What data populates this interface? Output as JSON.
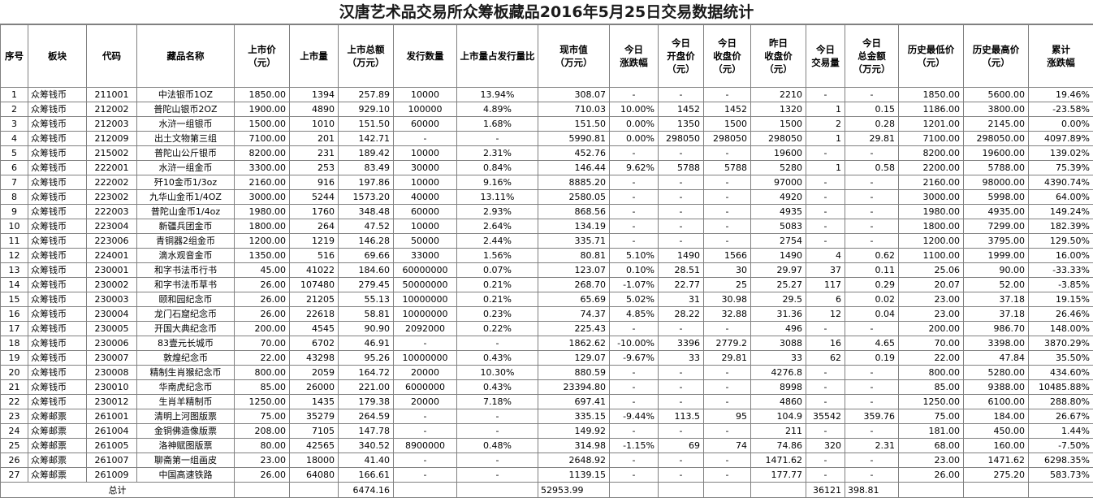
{
  "title": "汉唐艺术品交易所众筹板藏品2016年5月25日交易数据统计",
  "headers": [
    "序号",
    "板块",
    "代码",
    "藏品名称",
    "上市价\n（元）",
    "上市量",
    "上市总额\n（万元）",
    "发行数量",
    "上市量占发行量比",
    "现市值\n（万元）",
    "今日\n涨跌幅",
    "今日\n开盘价\n（元）",
    "今日\n收盘价\n（元）",
    "昨日\n收盘价\n（元）",
    "今日\n交易量",
    "今日\n总金额\n（万元）",
    "历史最低价\n（元）",
    "历史最高价\n（元）",
    "累计\n涨跌幅"
  ],
  "rows": [
    [
      "1",
      "众筹钱币",
      "211001",
      "中法银币1OZ",
      "1850.00",
      "1394",
      "257.89",
      "10000",
      "13.94%",
      "308.07",
      "-",
      "-",
      "-",
      "2210",
      "-",
      "-",
      "1850.00",
      "5600.00",
      "19.46%"
    ],
    [
      "2",
      "众筹钱币",
      "212002",
      "普陀山银币2OZ",
      "1900.00",
      "4890",
      "929.10",
      "100000",
      "4.89%",
      "710.03",
      "10.00%",
      "1452",
      "1452",
      "1320",
      "1",
      "0.15",
      "1186.00",
      "3800.00",
      "-23.58%"
    ],
    [
      "3",
      "众筹钱币",
      "212003",
      "水浒一组银币",
      "1500.00",
      "1010",
      "151.50",
      "60000",
      "1.68%",
      "151.50",
      "0.00%",
      "1350",
      "1500",
      "1500",
      "2",
      "0.28",
      "1201.00",
      "2145.00",
      "0.00%"
    ],
    [
      "4",
      "众筹钱币",
      "212009",
      "出土文物第三组",
      "7100.00",
      "201",
      "142.71",
      "-",
      "-",
      "5990.81",
      "0.00%",
      "298050",
      "298050",
      "298050",
      "1",
      "29.81",
      "7100.00",
      "298050.00",
      "4097.89%"
    ],
    [
      "5",
      "众筹钱币",
      "215002",
      "普陀山公斤银币",
      "8200.00",
      "231",
      "189.42",
      "10000",
      "2.31%",
      "452.76",
      "-",
      "-",
      "-",
      "19600",
      "-",
      "-",
      "8200.00",
      "19600.00",
      "139.02%"
    ],
    [
      "6",
      "众筹钱币",
      "222001",
      "水浒一组金币",
      "3300.00",
      "253",
      "83.49",
      "30000",
      "0.84%",
      "146.44",
      "9.62%",
      "5788",
      "5788",
      "5280",
      "1",
      "0.58",
      "2200.00",
      "5788.00",
      "75.39%"
    ],
    [
      "7",
      "众筹钱币",
      "222002",
      "歼10金币1/3oz",
      "2160.00",
      "916",
      "197.86",
      "10000",
      "9.16%",
      "8885.20",
      "-",
      "-",
      "-",
      "97000",
      "-",
      "-",
      "2160.00",
      "98000.00",
      "4390.74%"
    ],
    [
      "8",
      "众筹钱币",
      "223002",
      "九华山金币1/4OZ",
      "3000.00",
      "5244",
      "1573.20",
      "40000",
      "13.11%",
      "2580.05",
      "-",
      "-",
      "-",
      "4920",
      "-",
      "-",
      "3000.00",
      "5998.00",
      "64.00%"
    ],
    [
      "9",
      "众筹钱币",
      "222003",
      "普陀山金币1/4oz",
      "1980.00",
      "1760",
      "348.48",
      "60000",
      "2.93%",
      "868.56",
      "-",
      "-",
      "-",
      "4935",
      "-",
      "-",
      "1980.00",
      "4935.00",
      "149.24%"
    ],
    [
      "10",
      "众筹钱币",
      "223004",
      "新疆兵团金币",
      "1800.00",
      "264",
      "47.52",
      "10000",
      "2.64%",
      "134.19",
      "-",
      "-",
      "-",
      "5083",
      "-",
      "-",
      "1800.00",
      "7299.00",
      "182.39%"
    ],
    [
      "11",
      "众筹钱币",
      "223006",
      "青铜器2组金币",
      "1200.00",
      "1219",
      "146.28",
      "50000",
      "2.44%",
      "335.71",
      "-",
      "-",
      "-",
      "2754",
      "-",
      "-",
      "1200.00",
      "3795.00",
      "129.50%"
    ],
    [
      "12",
      "众筹钱币",
      "224001",
      "滴水观音金币",
      "1350.00",
      "516",
      "69.66",
      "33000",
      "1.56%",
      "80.81",
      "5.10%",
      "1490",
      "1566",
      "1490",
      "4",
      "0.62",
      "1100.00",
      "1999.00",
      "16.00%"
    ],
    [
      "13",
      "众筹钱币",
      "230001",
      "和字书法币行书",
      "45.00",
      "41022",
      "184.60",
      "60000000",
      "0.07%",
      "123.07",
      "0.10%",
      "28.51",
      "30",
      "29.97",
      "37",
      "0.11",
      "25.06",
      "90.00",
      "-33.33%"
    ],
    [
      "14",
      "众筹钱币",
      "230002",
      "和字书法币草书",
      "26.00",
      "107480",
      "279.45",
      "50000000",
      "0.21%",
      "268.70",
      "-1.07%",
      "22.77",
      "25",
      "25.27",
      "117",
      "0.29",
      "20.07",
      "52.00",
      "-3.85%"
    ],
    [
      "15",
      "众筹钱币",
      "230003",
      "颐和园纪念币",
      "26.00",
      "21205",
      "55.13",
      "10000000",
      "0.21%",
      "65.69",
      "5.02%",
      "31",
      "30.98",
      "29.5",
      "6",
      "0.02",
      "23.00",
      "37.18",
      "19.15%"
    ],
    [
      "16",
      "众筹钱币",
      "230004",
      "龙门石窟纪念币",
      "26.00",
      "22618",
      "58.81",
      "10000000",
      "0.23%",
      "74.37",
      "4.85%",
      "28.22",
      "32.88",
      "31.36",
      "12",
      "0.04",
      "23.00",
      "37.18",
      "26.46%"
    ],
    [
      "17",
      "众筹钱币",
      "230005",
      "开国大典纪念币",
      "200.00",
      "4545",
      "90.90",
      "2092000",
      "0.22%",
      "225.43",
      "-",
      "-",
      "-",
      "496",
      "-",
      "-",
      "200.00",
      "986.70",
      "148.00%"
    ],
    [
      "18",
      "众筹钱币",
      "230006",
      "83壹元长城币",
      "70.00",
      "6702",
      "46.91",
      "-",
      "-",
      "1862.62",
      "-10.00%",
      "3396",
      "2779.2",
      "3088",
      "16",
      "4.65",
      "70.00",
      "3398.00",
      "3870.29%"
    ],
    [
      "19",
      "众筹钱币",
      "230007",
      "敦煌纪念币",
      "22.00",
      "43298",
      "95.26",
      "10000000",
      "0.43%",
      "129.07",
      "-9.67%",
      "33",
      "29.81",
      "33",
      "62",
      "0.19",
      "22.00",
      "47.84",
      "35.50%"
    ],
    [
      "20",
      "众筹钱币",
      "230008",
      "精制生肖猴纪念币",
      "800.00",
      "2059",
      "164.72",
      "20000",
      "10.30%",
      "880.59",
      "-",
      "-",
      "-",
      "4276.8",
      "-",
      "-",
      "800.00",
      "5280.00",
      "434.60%"
    ],
    [
      "21",
      "众筹钱币",
      "230010",
      "华南虎纪念币",
      "85.00",
      "26000",
      "221.00",
      "6000000",
      "0.43%",
      "23394.80",
      "-",
      "-",
      "-",
      "8998",
      "-",
      "-",
      "85.00",
      "9388.00",
      "10485.88%"
    ],
    [
      "22",
      "众筹钱币",
      "230012",
      "生肖羊精制币",
      "1250.00",
      "1435",
      "179.38",
      "20000",
      "7.18%",
      "697.41",
      "-",
      "-",
      "-",
      "4860",
      "-",
      "-",
      "1250.00",
      "6100.00",
      "288.80%"
    ],
    [
      "23",
      "众筹邮票",
      "261001",
      "清明上河图版票",
      "75.00",
      "35279",
      "264.59",
      "-",
      "-",
      "335.15",
      "-9.44%",
      "113.5",
      "95",
      "104.9",
      "35542",
      "359.76",
      "75.00",
      "184.00",
      "26.67%"
    ],
    [
      "24",
      "众筹邮票",
      "261004",
      "金铜佛造像版票",
      "208.00",
      "7105",
      "147.78",
      "-",
      "-",
      "149.92",
      "-",
      "-",
      "-",
      "211",
      "-",
      "-",
      "181.00",
      "450.00",
      "1.44%"
    ],
    [
      "25",
      "众筹邮票",
      "261005",
      "洛神赋图版票",
      "80.00",
      "42565",
      "340.52",
      "8900000",
      "0.48%",
      "314.98",
      "-1.15%",
      "69",
      "74",
      "74.86",
      "320",
      "2.31",
      "68.00",
      "160.00",
      "-7.50%"
    ],
    [
      "26",
      "众筹邮票",
      "261007",
      "聊斋第一组画皮",
      "23.00",
      "18000",
      "41.40",
      "-",
      "-",
      "2648.92",
      "-",
      "-",
      "-",
      "1471.62",
      "-",
      "-",
      "23.00",
      "1471.62",
      "6298.35%"
    ],
    [
      "27",
      "众筹邮票",
      "261009",
      "中国高速铁路",
      "26.00",
      "64080",
      "166.61",
      "-",
      "-",
      "1139.15",
      "-",
      "-",
      "-",
      "177.77",
      "-",
      "-",
      "26.00",
      "275.20",
      "583.73%"
    ]
  ],
  "total": {
    "label": "总计",
    "listing_total": "6474.16",
    "market_value_total": "52953.99",
    "volume_total": "36121",
    "amount_total": "398.81"
  }
}
